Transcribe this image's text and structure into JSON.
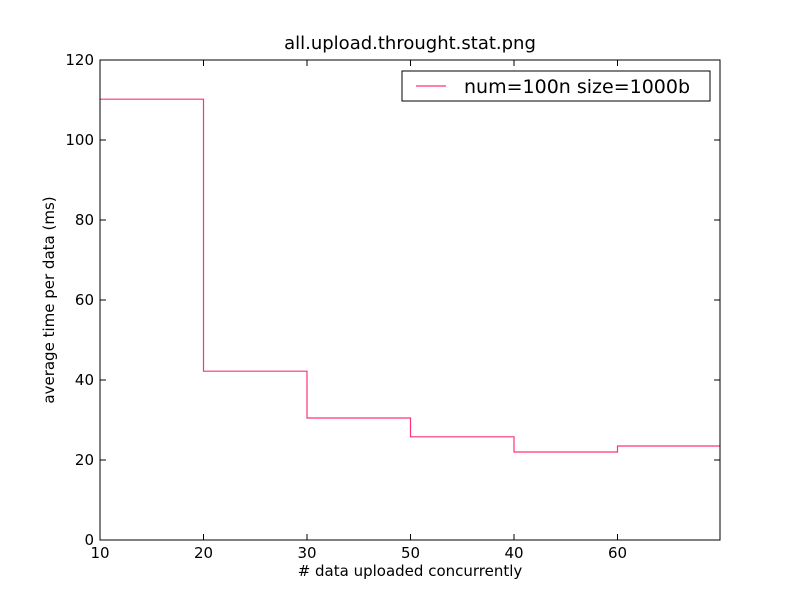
{
  "chart_data": {
    "type": "line",
    "drawstyle": "steps-post",
    "title": "all.upload.throught.stat.png",
    "xlabel": "# data uploaded concurrently",
    "ylabel": "average time per data (ms)",
    "ylim": [
      0,
      120
    ],
    "x_tick_labels": [
      "10",
      "20",
      "30",
      "50",
      "40",
      "60"
    ],
    "y_tick_labels": [
      "0",
      "20",
      "40",
      "60",
      "80",
      "100",
      "120"
    ],
    "grid": false,
    "legend_position": "top-right",
    "series": [
      {
        "name": "num=100n size=1000b",
        "color": "#ff3377",
        "x": [
          "10",
          "20",
          "30",
          "50",
          "40",
          "60"
        ],
        "values": [
          110.2,
          42.2,
          30.5,
          25.8,
          22.0,
          23.5
        ]
      }
    ]
  }
}
